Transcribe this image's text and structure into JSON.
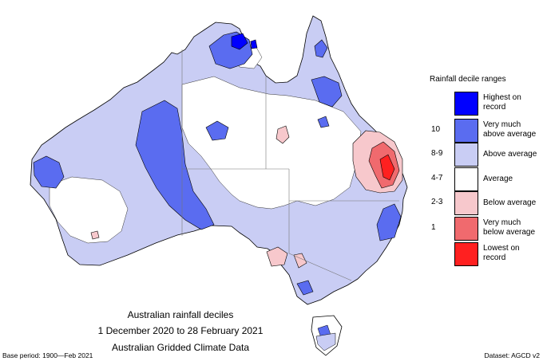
{
  "legend": {
    "title": "Rainfall decile ranges",
    "entries": [
      {
        "decile": "",
        "label": "Highest on record",
        "color": "#0000ff"
      },
      {
        "decile": "10",
        "label": "Very much above average",
        "color": "#5a6cf0"
      },
      {
        "decile": "8-9",
        "label": "Above average",
        "color": "#c9cdf4"
      },
      {
        "decile": "4-7",
        "label": "Average",
        "color": "#ffffff"
      },
      {
        "decile": "2-3",
        "label": "Below average",
        "color": "#f7c8cc"
      },
      {
        "decile": "1",
        "label": "Very much below average",
        "color": "#f06a6e"
      },
      {
        "decile": "",
        "label": "Lowest on record",
        "color": "#ff2020"
      }
    ]
  },
  "caption": {
    "line1": "Australian rainfall deciles",
    "line2": "1 December 2020 to 28 February 2021",
    "line3": "Australian Gridded Climate Data"
  },
  "footer": {
    "base_period": "Base period: 1900—Feb 2021",
    "dataset": "Dataset: AGCD v2"
  }
}
